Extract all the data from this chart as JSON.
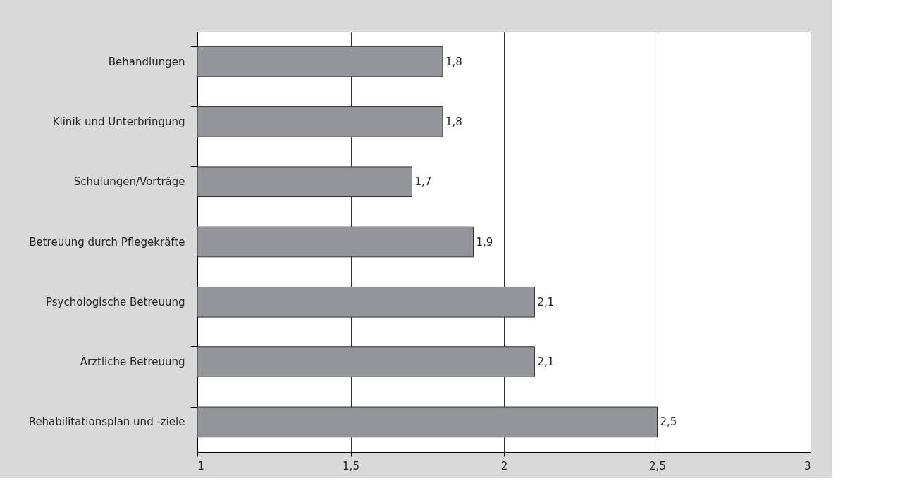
{
  "chart_data": {
    "type": "bar",
    "orientation": "horizontal",
    "categories": [
      "Behandlungen",
      "Klinik und Unterbringung",
      "Schulungen/Vorträge",
      "Betreuung durch Pflegekräfte",
      "Psychologische Betreuung",
      "Ärztliche Betreuung",
      "Rehabilitationsplan und -ziele"
    ],
    "values": [
      1.8,
      1.8,
      1.7,
      1.9,
      2.1,
      2.1,
      2.5
    ],
    "value_labels": [
      "1,8",
      "1,8",
      "1,7",
      "1,9",
      "2,1",
      "2,1",
      "2,5"
    ],
    "color": "#939598",
    "xlim": [
      1,
      3
    ],
    "xticks": [
      1,
      {
        "value": 1.5,
        "label": "1,5"
      },
      2,
      {
        "value": 2.5,
        "label": "2,5"
      },
      3
    ],
    "grid": "x"
  }
}
